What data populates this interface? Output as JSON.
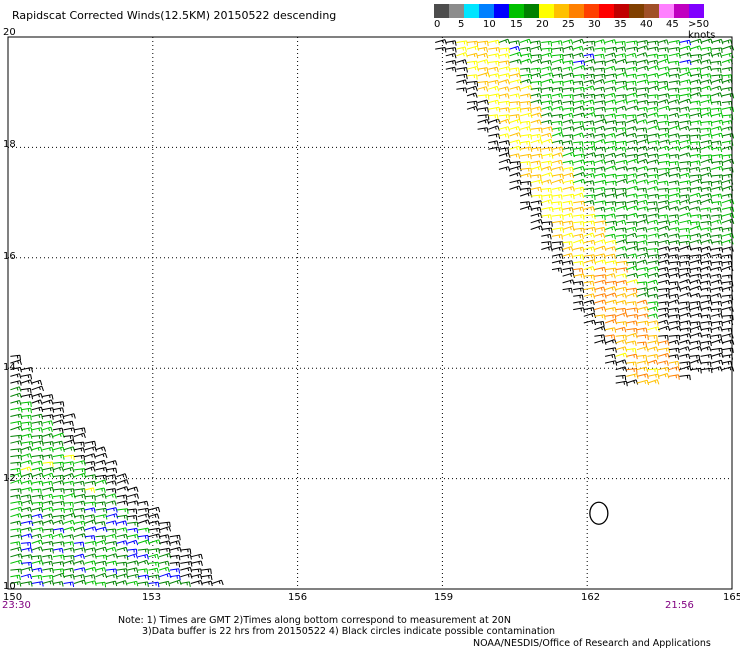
{
  "title": "Rapidscat Corrected Winds(12.5KM) 20150522 descending",
  "legend": {
    "colors": [
      "#4d4d4d",
      "#8c8c8c",
      "#00e5ff",
      "#0080ff",
      "#0000ff",
      "#00c000",
      "#008000",
      "#ffff00",
      "#ffc000",
      "#ff8000",
      "#ff4000",
      "#ff0000",
      "#c00000",
      "#804000",
      "#a05028",
      "#ff80ff",
      "#c000c0",
      "#8000ff"
    ],
    "labels": [
      "0",
      "5",
      "10",
      "15",
      "20",
      "25",
      "30",
      "35",
      "40",
      "45",
      ">50 knots"
    ]
  },
  "axes": {
    "lat_labels": [
      "20",
      "18",
      "16",
      "14",
      "12",
      "10"
    ],
    "lon_labels": [
      "150",
      "153",
      "156",
      "159",
      "162",
      "165"
    ],
    "time_left": "23:30",
    "time_right": "21:56"
  },
  "notes": {
    "line1": "Note: 1) Times are GMT 2)Times along bottom correspond to measurement at 20N",
    "line2": "3)Data buffer is 22 hrs from 20150522 4) Black circles indicate possible contamination",
    "credit": "NOAA/NESDIS/Office of Research and Applications"
  },
  "map_data": {
    "lat_range": [
      10,
      20
    ],
    "lon_range": [
      150,
      165
    ],
    "swaths": [
      {
        "name": "west",
        "polygon": [
          [
            150,
            14.3
          ],
          [
            150,
            10
          ],
          [
            154.4,
            10
          ]
        ]
      },
      {
        "name": "east",
        "polygon": [
          [
            158.7,
            20
          ],
          [
            165,
            20
          ],
          [
            165,
            14.0
          ],
          [
            162.6,
            13.6
          ]
        ]
      }
    ],
    "contamination_circles": [
      {
        "lon": 162.2,
        "lat": 11.3
      }
    ]
  }
}
